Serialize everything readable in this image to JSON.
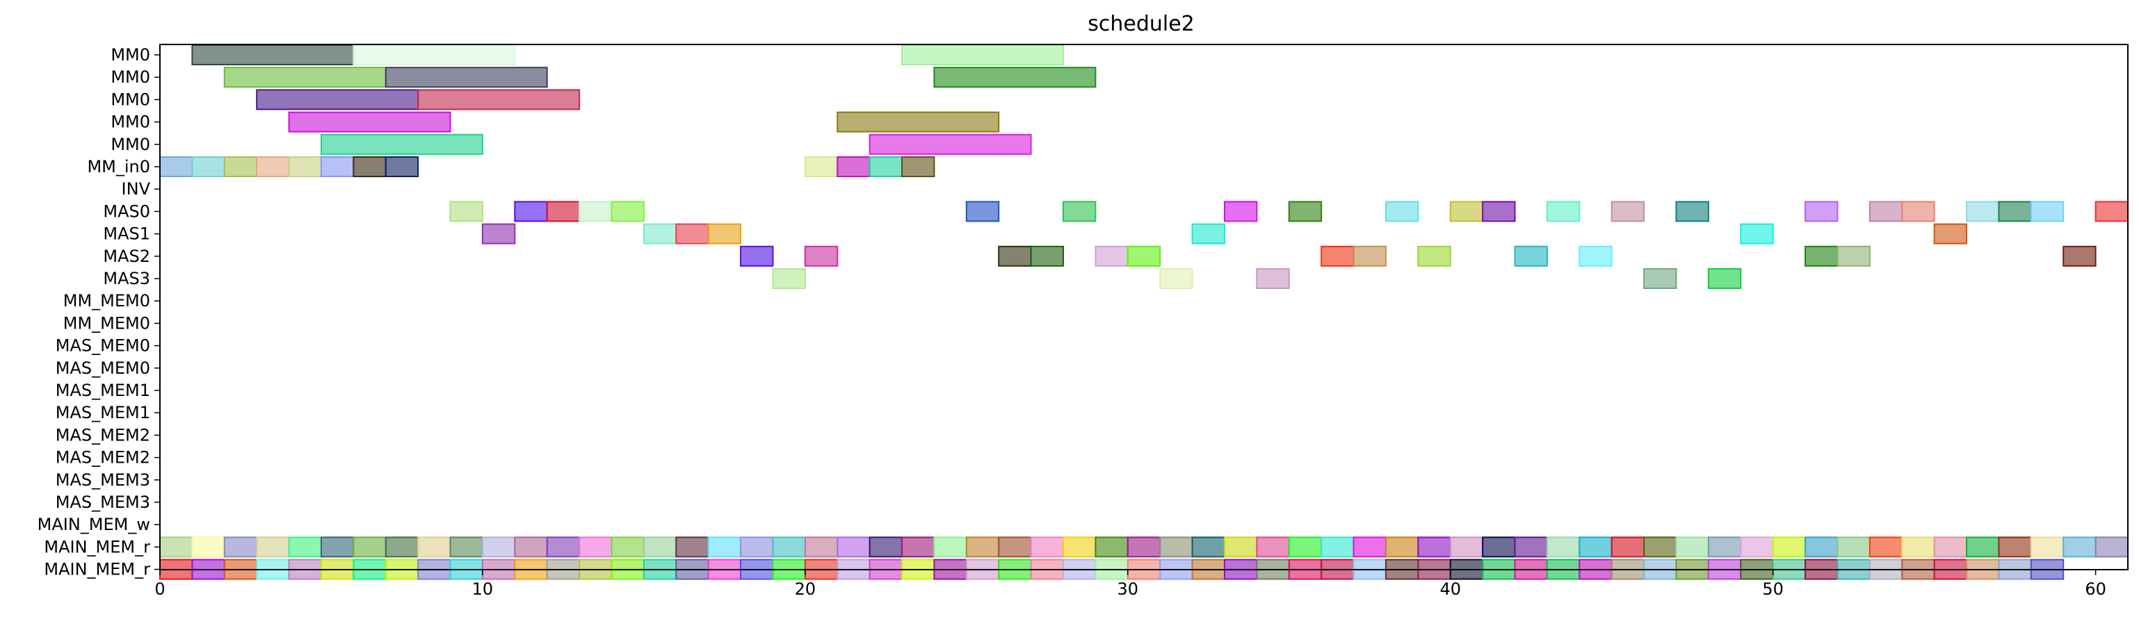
{
  "chart_data": {
    "type": "gantt",
    "title": "schedule2",
    "xlabel": "",
    "ylabel": "",
    "xlim": [
      0,
      61
    ],
    "xticks": [
      0,
      10,
      20,
      30,
      40,
      50,
      60
    ],
    "grid": false,
    "rows": [
      "MM0",
      "MM0",
      "MM0",
      "MM0",
      "MM0",
      "MM_in0",
      "INV",
      "MAS0",
      "MAS1",
      "MAS2",
      "MAS3",
      "MM_MEM0",
      "MM_MEM0",
      "MAS_MEM0",
      "MAS_MEM0",
      "MAS_MEM1",
      "MAS_MEM1",
      "MAS_MEM2",
      "MAS_MEM2",
      "MAS_MEM3",
      "MAS_MEM3",
      "MAIN_MEM_w",
      "MAIN_MEM_r",
      "MAIN_MEM_r"
    ],
    "tasks": [
      {
        "row": 0,
        "start": 1,
        "end": 6,
        "color": "#2e4a3f"
      },
      {
        "row": 0,
        "start": 6,
        "end": 11,
        "color": "#d8f8e0"
      },
      {
        "row": 0,
        "start": 23,
        "end": 28,
        "color": "#9ef09a"
      },
      {
        "row": 1,
        "start": 2,
        "end": 7,
        "color": "#6cbc3a"
      },
      {
        "row": 1,
        "start": 7,
        "end": 12,
        "color": "#3d3f5e"
      },
      {
        "row": 1,
        "start": 24,
        "end": 29,
        "color": "#1f8c1a"
      },
      {
        "row": 2,
        "start": 3,
        "end": 8,
        "color": "#4a188c"
      },
      {
        "row": 2,
        "start": 8,
        "end": 13,
        "color": "#c0284e"
      },
      {
        "row": 3,
        "start": 4,
        "end": 9,
        "color": "#cc10d8"
      },
      {
        "row": 3,
        "start": 21,
        "end": 26,
        "color": "#8a7a10"
      },
      {
        "row": 4,
        "start": 5,
        "end": 10,
        "color": "#20d090"
      },
      {
        "row": 4,
        "start": 22,
        "end": 27,
        "color": "#d820dc"
      },
      {
        "row": 5,
        "start": 0,
        "end": 1,
        "color": "#6ea8e0"
      },
      {
        "row": 5,
        "start": 1,
        "end": 2,
        "color": "#6ed0d0"
      },
      {
        "row": 5,
        "start": 2,
        "end": 3,
        "color": "#a8c050"
      },
      {
        "row": 5,
        "start": 3,
        "end": 4,
        "color": "#e8a880"
      },
      {
        "row": 5,
        "start": 4,
        "end": 5,
        "color": "#c8d080"
      },
      {
        "row": 5,
        "start": 5,
        "end": 6,
        "color": "#8898f0"
      },
      {
        "row": 5,
        "start": 6,
        "end": 7,
        "color": "#3a2a10"
      },
      {
        "row": 5,
        "start": 7,
        "end": 8,
        "color": "#102060"
      },
      {
        "row": 5,
        "start": 20,
        "end": 21,
        "color": "#d8e890"
      },
      {
        "row": 5,
        "start": 21,
        "end": 22,
        "color": "#c010c0"
      },
      {
        "row": 5,
        "start": 22,
        "end": 23,
        "color": "#20d0a0"
      },
      {
        "row": 5,
        "start": 23,
        "end": 24,
        "color": "#605018"
      },
      {
        "row": 7,
        "start": 9,
        "end": 10,
        "color": "#b0e080"
      },
      {
        "row": 7,
        "start": 11,
        "end": 12,
        "color": "#5010f0"
      },
      {
        "row": 7,
        "start": 12,
        "end": 13,
        "color": "#d01030"
      },
      {
        "row": 7,
        "start": 13,
        "end": 14,
        "color": "#c8f0c8"
      },
      {
        "row": 7,
        "start": 14,
        "end": 15,
        "color": "#80f040"
      },
      {
        "row": 7,
        "start": 25,
        "end": 26,
        "color": "#2050c8"
      },
      {
        "row": 7,
        "start": 28,
        "end": 29,
        "color": "#30c050"
      },
      {
        "row": 7,
        "start": 33,
        "end": 34,
        "color": "#d010e8"
      },
      {
        "row": 7,
        "start": 35,
        "end": 36,
        "color": "#308010"
      },
      {
        "row": 7,
        "start": 38,
        "end": 39,
        "color": "#60e0e8"
      },
      {
        "row": 7,
        "start": 40,
        "end": 41,
        "color": "#c0c030"
      },
      {
        "row": 7,
        "start": 41,
        "end": 42,
        "color": "#7010a8"
      },
      {
        "row": 7,
        "start": 43,
        "end": 44,
        "color": "#60f0c8"
      },
      {
        "row": 7,
        "start": 45,
        "end": 46,
        "color": "#c090a0"
      },
      {
        "row": 7,
        "start": 47,
        "end": 48,
        "color": "#108080"
      },
      {
        "row": 7,
        "start": 51,
        "end": 52,
        "color": "#b060f0"
      },
      {
        "row": 7,
        "start": 53,
        "end": 54,
        "color": "#c080a8"
      },
      {
        "row": 7,
        "start": 54,
        "end": 55,
        "color": "#e88070"
      },
      {
        "row": 7,
        "start": 56,
        "end": 57,
        "color": "#90d8e8"
      },
      {
        "row": 7,
        "start": 57,
        "end": 58,
        "color": "#208050"
      },
      {
        "row": 7,
        "start": 58,
        "end": 59,
        "color": "#70d0f8"
      },
      {
        "row": 7,
        "start": 60,
        "end": 61,
        "color": "#f03030"
      },
      {
        "row": 8,
        "start": 10,
        "end": 11,
        "color": "#9030b0"
      },
      {
        "row": 8,
        "start": 15,
        "end": 16,
        "color": "#80e8d0"
      },
      {
        "row": 8,
        "start": 16,
        "end": 17,
        "color": "#e84050"
      },
      {
        "row": 8,
        "start": 17,
        "end": 18,
        "color": "#e8a010"
      },
      {
        "row": 8,
        "start": 32,
        "end": 33,
        "color": "#20e8d0"
      },
      {
        "row": 8,
        "start": 49,
        "end": 50,
        "color": "#10f0e0"
      },
      {
        "row": 8,
        "start": 55,
        "end": 56,
        "color": "#d05810"
      },
      {
        "row": 9,
        "start": 18,
        "end": 19,
        "color": "#5010e8"
      },
      {
        "row": 9,
        "start": 20,
        "end": 21,
        "color": "#c830a0"
      },
      {
        "row": 9,
        "start": 26,
        "end": 27,
        "color": "#303010"
      },
      {
        "row": 9,
        "start": 27,
        "end": 28,
        "color": "#206010"
      },
      {
        "row": 9,
        "start": 29,
        "end": 30,
        "color": "#d0a0d0"
      },
      {
        "row": 9,
        "start": 30,
        "end": 31,
        "color": "#60f010"
      },
      {
        "row": 9,
        "start": 36,
        "end": 37,
        "color": "#f03010"
      },
      {
        "row": 9,
        "start": 37,
        "end": 38,
        "color": "#c09050"
      },
      {
        "row": 9,
        "start": 39,
        "end": 40,
        "color": "#98d830"
      },
      {
        "row": 9,
        "start": 42,
        "end": 43,
        "color": "#20b8c0"
      },
      {
        "row": 9,
        "start": 44,
        "end": 45,
        "color": "#60f0f8"
      },
      {
        "row": 9,
        "start": 51,
        "end": 52,
        "color": "#208010"
      },
      {
        "row": 9,
        "start": 52,
        "end": 53,
        "color": "#90b070"
      },
      {
        "row": 9,
        "start": 59,
        "end": 60,
        "color": "#702010"
      },
      {
        "row": 10,
        "start": 19,
        "end": 20,
        "color": "#b0e890"
      },
      {
        "row": 10,
        "start": 31,
        "end": 32,
        "color": "#e0f0b0"
      },
      {
        "row": 10,
        "start": 34,
        "end": 35,
        "color": "#c898c0"
      },
      {
        "row": 10,
        "start": 46,
        "end": 47,
        "color": "#70a880"
      },
      {
        "row": 10,
        "start": 48,
        "end": 49,
        "color": "#10d040"
      }
    ],
    "main_mem_r_row1_colors": [
      "#a8d080",
      "#f8f8a0",
      "#8888c8",
      "#d0d090",
      "#40f080",
      "#306878",
      "#68b040",
      "#407040",
      "#e0d090",
      "#588858",
      "#b0b0e0",
      "#b06898",
      "#8040b8",
      "#f070d8",
      "#80d040",
      "#98d098",
      "#603040",
      "#60e0f8",
      "#9090e0",
      "#40c0c0",
      "#c07898",
      "#b068e8",
      "#301870",
      "#a01878",
      "#90f090",
      "#c08030",
      "#a05030",
      "#f080c0",
      "#f0d010",
      "#408810",
      "#a01888",
      "#8e8e70",
      "#10606a",
      "#c8d810",
      "#e04890",
      "#20f020",
      "#30e8d0",
      "#e010e0",
      "#c88018",
      "#9010c0",
      "#d090c0",
      "#0c0c50",
      "#601890",
      "#98d8a8",
      "#10b0c8",
      "#d01020",
      "#586010",
      "#98e0a0",
      "#7898b0",
      "#e0a0d8",
      "#c8f010",
      "#38a0c8",
      "#88c888",
      "#f04010",
      "#e8e070",
      "#e090a8",
      "#10b040",
      "#903010",
      "#f0e098",
      "#60b0d8",
      "#8880b0",
      "#d0a090",
      "#601850",
      "#509090",
      "#3c7cd0"
    ],
    "main_mem_r_row2_colors": [
      "#e81818",
      "#a010d0",
      "#d85818",
      "#70f0e8",
      "#b880c0",
      "#d0e010",
      "#10f080",
      "#c0f010",
      "#8080d0",
      "#30d0d8",
      "#c070b0",
      "#f0a010",
      "#a0a090",
      "#b8c040",
      "#80f010",
      "#20d0a0",
      "#6060a0",
      "#f040d0",
      "#5050e8",
      "#20f020",
      "#e83020",
      "#c0a0e0",
      "#d040d0",
      "#d0f010",
      "#a010a0",
      "#d0a0d0",
      "#30e820",
      "#f08090",
      "#b0b0e8",
      "#a0f0a0",
      "#f08070",
      "#90a0f0",
      "#c07830",
      "#9010c0",
      "#708060",
      "#e01060",
      "#c01048",
      "#90c0f0",
      "#603030",
      "#902050",
      "#101030",
      "#10c050",
      "#d01890",
      "#10c050",
      "#c010c0",
      "#a09070",
      "#80b8d8",
      "#709830",
      "#c040e0",
      "#406020",
      "#40c090",
      "#901040",
      "#40b0b0",
      "#b0b0c0",
      "#b06040",
      "#d01040",
      "#d09060",
      "#90a0d0",
      "#5050c8"
    ],
    "main_mem_r_row2_note": ""
  }
}
